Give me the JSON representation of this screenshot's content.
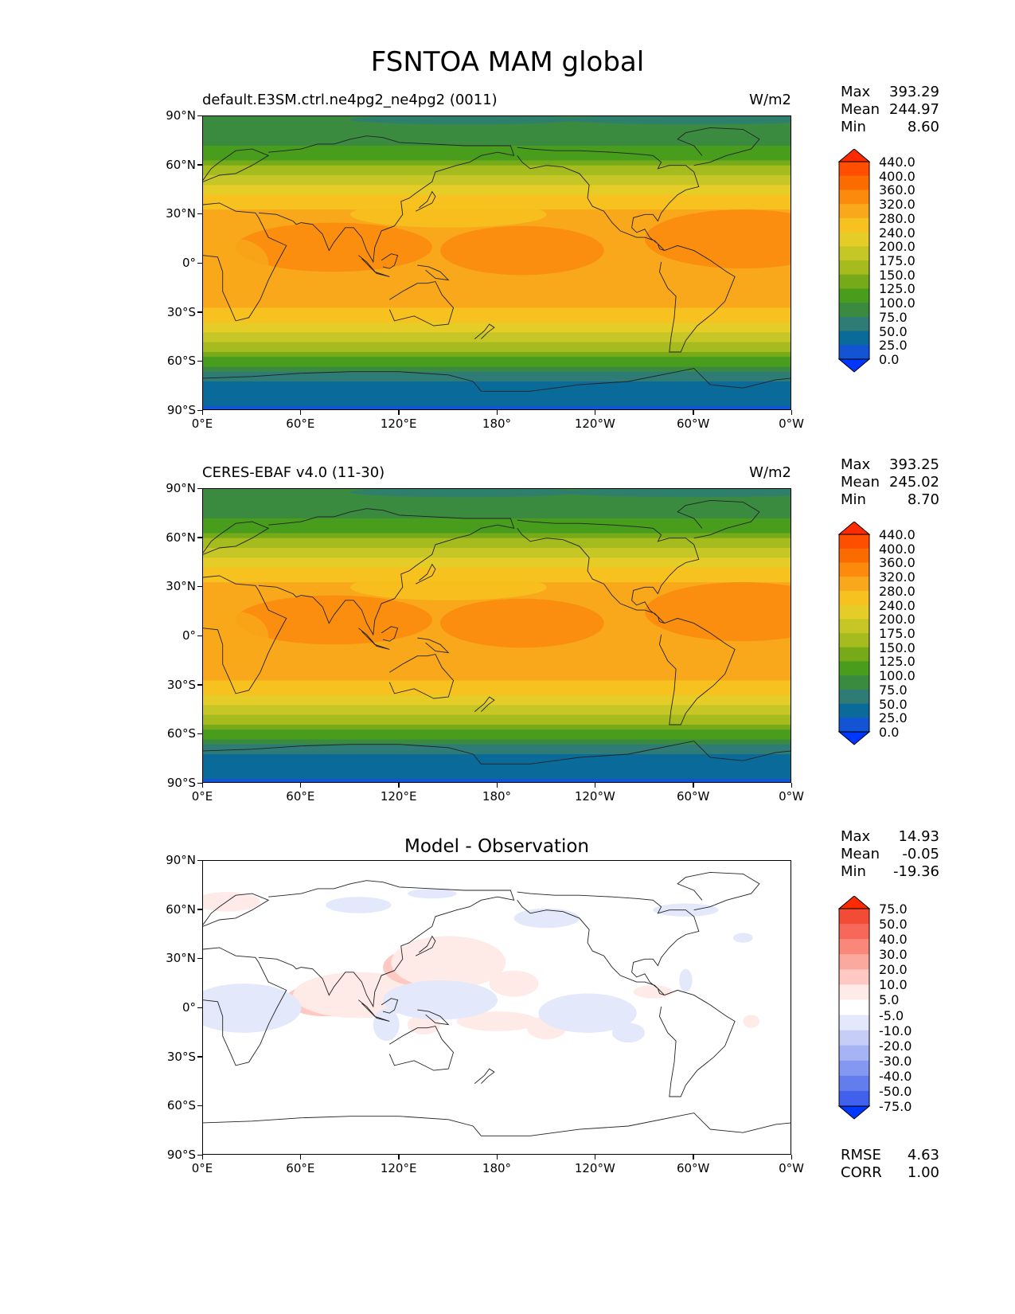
{
  "title": "FSNTOA MAM global",
  "latitude_ticks": [
    "90°N",
    "60°N",
    "30°N",
    "0°",
    "30°S",
    "60°S",
    "90°S"
  ],
  "longitude_ticks": [
    "0°E",
    "60°E",
    "120°E",
    "180°",
    "120°W",
    "60°W",
    "0°W"
  ],
  "panels": [
    {
      "title": "default.E3SM.ctrl.ne4pg2_ne4pg2 (0011)",
      "units": "W/m2",
      "stats": [
        {
          "label": "Max",
          "value": "393.29"
        },
        {
          "label": "Mean",
          "value": "244.97"
        },
        {
          "label": "Min",
          "value": "8.60"
        }
      ],
      "colorbar": {
        "labels": [
          "440.0",
          "400.0",
          "360.0",
          "320.0",
          "280.0",
          "240.0",
          "200.0",
          "175.0",
          "150.0",
          "125.0",
          "100.0",
          "75.0",
          "50.0",
          "25.0",
          "0.0"
        ],
        "colors": [
          "#ff2a00",
          "#fe4e00",
          "#fb6c00",
          "#fb8a0d",
          "#f8a81a",
          "#f7c21f",
          "#e6cc27",
          "#c6c726",
          "#a5bb1e",
          "#76aa18",
          "#489e1c",
          "#3a8b40",
          "#2e7c75",
          "#0a6a9a",
          "#1254d4",
          "#0037ff"
        ]
      }
    },
    {
      "title": "CERES-EBAF v4.0 (11-30)",
      "units": "W/m2",
      "stats": [
        {
          "label": "Max",
          "value": "393.25"
        },
        {
          "label": "Mean",
          "value": "245.02"
        },
        {
          "label": "Min",
          "value": "8.70"
        }
      ],
      "colorbar": {
        "labels": [
          "440.0",
          "400.0",
          "360.0",
          "320.0",
          "280.0",
          "240.0",
          "200.0",
          "175.0",
          "150.0",
          "125.0",
          "100.0",
          "75.0",
          "50.0",
          "25.0",
          "0.0"
        ],
        "colors": [
          "#ff2a00",
          "#fe4e00",
          "#fb6c00",
          "#fb8a0d",
          "#f8a81a",
          "#f7c21f",
          "#e6cc27",
          "#c6c726",
          "#a5bb1e",
          "#76aa18",
          "#489e1c",
          "#3a8b40",
          "#2e7c75",
          "#0a6a9a",
          "#1254d4",
          "#0037ff"
        ]
      }
    },
    {
      "title": "Model - Observation",
      "units": "",
      "stats": [
        {
          "label": "Max",
          "value": "14.93"
        },
        {
          "label": "Mean",
          "value": "-0.05"
        },
        {
          "label": "Min",
          "value": "-19.36"
        }
      ],
      "extra_stats": [
        {
          "label": "RMSE",
          "value": "4.63"
        },
        {
          "label": "CORR",
          "value": "1.00"
        }
      ],
      "colorbar": {
        "labels": [
          "75.0",
          "50.0",
          "40.0",
          "30.0",
          "20.0",
          "10.0",
          "5.0",
          "-5.0",
          "-10.0",
          "-20.0",
          "-30.0",
          "-40.0",
          "-50.0",
          "-75.0"
        ],
        "colors": [
          "#ff2a00",
          "#f24b36",
          "#f7685a",
          "#f9877a",
          "#fba89e",
          "#fdc9c2",
          "#feeae6",
          "#ffffff",
          "#e4e8fb",
          "#c6cef7",
          "#a6b3f4",
          "#8598f1",
          "#637cee",
          "#4160ec",
          "#0037ff"
        ]
      }
    }
  ],
  "chart_data": [
    {
      "type": "heatmap",
      "title": "default.E3SM.ctrl.ne4pg2_ne4pg2 (0011)",
      "units": "W/m2",
      "x_range": [
        "0°E",
        "0°W"
      ],
      "y_range": [
        "90°S",
        "90°N"
      ],
      "levels": [
        0,
        25,
        50,
        75,
        100,
        125,
        150,
        175,
        200,
        240,
        280,
        320,
        360,
        400,
        440
      ],
      "zonal_profile": {
        "lat": [
          -90,
          -75,
          -65,
          -55,
          -45,
          -35,
          -25,
          -15,
          0,
          15,
          25,
          35,
          45,
          55,
          65,
          75,
          90
        ],
        "value": [
          20,
          40,
          80,
          140,
          190,
          250,
          290,
          300,
          290,
          310,
          300,
          270,
          220,
          170,
          120,
          90,
          80
        ]
      },
      "max": 393.29,
      "mean": 244.97,
      "min": 8.6
    },
    {
      "type": "heatmap",
      "title": "CERES-EBAF v4.0 (11-30)",
      "units": "W/m2",
      "x_range": [
        "0°E",
        "0°W"
      ],
      "y_range": [
        "90°S",
        "90°N"
      ],
      "levels": [
        0,
        25,
        50,
        75,
        100,
        125,
        150,
        175,
        200,
        240,
        280,
        320,
        360,
        400,
        440
      ],
      "zonal_profile": {
        "lat": [
          -90,
          -75,
          -65,
          -55,
          -45,
          -35,
          -25,
          -15,
          0,
          15,
          25,
          35,
          45,
          55,
          65,
          75,
          90
        ],
        "value": [
          20,
          40,
          80,
          140,
          190,
          250,
          290,
          300,
          290,
          310,
          300,
          270,
          220,
          170,
          120,
          90,
          80
        ]
      },
      "max": 393.25,
      "mean": 245.02,
      "min": 8.7
    },
    {
      "type": "heatmap",
      "title": "Model - Observation",
      "x_range": [
        "0°E",
        "0°W"
      ],
      "y_range": [
        "90°S",
        "90°N"
      ],
      "levels": [
        -75,
        -50,
        -40,
        -30,
        -20,
        -10,
        -5,
        5,
        10,
        20,
        30,
        40,
        50,
        75
      ],
      "max": 14.93,
      "mean": -0.05,
      "min": -19.36,
      "rmse": 4.63,
      "corr": 1.0
    }
  ]
}
